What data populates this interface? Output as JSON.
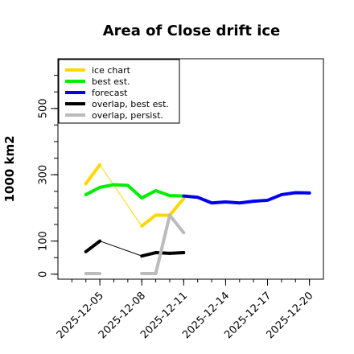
{
  "chart_data": {
    "type": "line",
    "title": "Area of Close drift ice",
    "xlabel": "",
    "ylabel": "1000 km2",
    "ylim": [
      -15,
      650
    ],
    "xlim": [
      "2025-12-02",
      "2025-12-21"
    ],
    "yticks": [
      0,
      100,
      300,
      500
    ],
    "xticks": [
      {
        "date": "2025-12-05",
        "label": "2025-12-05",
        "color": "#000000"
      },
      {
        "date": "2025-12-08",
        "label": "2025-12-08",
        "color": "#000000"
      },
      {
        "date": "2025-12-11",
        "label": "2025-12-11",
        "color": "#008000"
      },
      {
        "date": "2025-12-14",
        "label": "2025-12-14",
        "color": "#000000"
      },
      {
        "date": "2025-12-17",
        "label": "2025-12-17",
        "color": "#000000"
      },
      {
        "date": "2025-12-20",
        "label": "2025-12-20",
        "color": "#000000"
      }
    ],
    "grid": false,
    "legend_position": "top-left",
    "series": [
      {
        "name": "ice chart",
        "color": "#FFD700",
        "style": "markers",
        "x": [
          "2025-12-04",
          "2025-12-05",
          "2025-12-08",
          "2025-12-09",
          "2025-12-10",
          "2025-12-11"
        ],
        "y": [
          273,
          330,
          145,
          178,
          178,
          228
        ]
      },
      {
        "name": "",
        "color": "#FFD700",
        "style": "thin",
        "x": [
          "2025-12-05",
          "2025-12-08"
        ],
        "y": [
          330,
          145
        ]
      },
      {
        "name": "best est.",
        "color": "#00EE00",
        "style": "line",
        "x": [
          "2025-12-04",
          "2025-12-05",
          "2025-12-06",
          "2025-12-07",
          "2025-12-08",
          "2025-12-09",
          "2025-12-10",
          "2025-12-11"
        ],
        "y": [
          240,
          262,
          270,
          268,
          230,
          252,
          237,
          236
        ]
      },
      {
        "name": "forecast",
        "color": "#0000EE",
        "style": "line",
        "x": [
          "2025-12-11",
          "2025-12-12",
          "2025-12-13",
          "2025-12-14",
          "2025-12-15",
          "2025-12-16",
          "2025-12-17",
          "2025-12-18",
          "2025-12-19",
          "2025-12-20"
        ],
        "y": [
          236,
          232,
          215,
          218,
          215,
          220,
          223,
          240,
          246,
          245
        ]
      },
      {
        "name": "overlap, best est.",
        "color": "#000000",
        "style": "markers",
        "x": [
          "2025-12-04",
          "2025-12-05",
          "2025-12-08",
          "2025-12-09",
          "2025-12-10",
          "2025-12-11"
        ],
        "y": [
          68,
          100,
          55,
          65,
          63,
          65
        ]
      },
      {
        "name": "",
        "color": "#000000",
        "style": "thin",
        "x": [
          "2025-12-05",
          "2025-12-08"
        ],
        "y": [
          100,
          55
        ]
      },
      {
        "name": "overlap, persist.",
        "color": "#BBBBBB",
        "style": "markers",
        "x": [
          "2025-12-04",
          "2025-12-05",
          "2025-12-08",
          "2025-12-09",
          "2025-12-10",
          "2025-12-11"
        ],
        "y": [
          2,
          2,
          2,
          2,
          178,
          125
        ]
      }
    ]
  }
}
